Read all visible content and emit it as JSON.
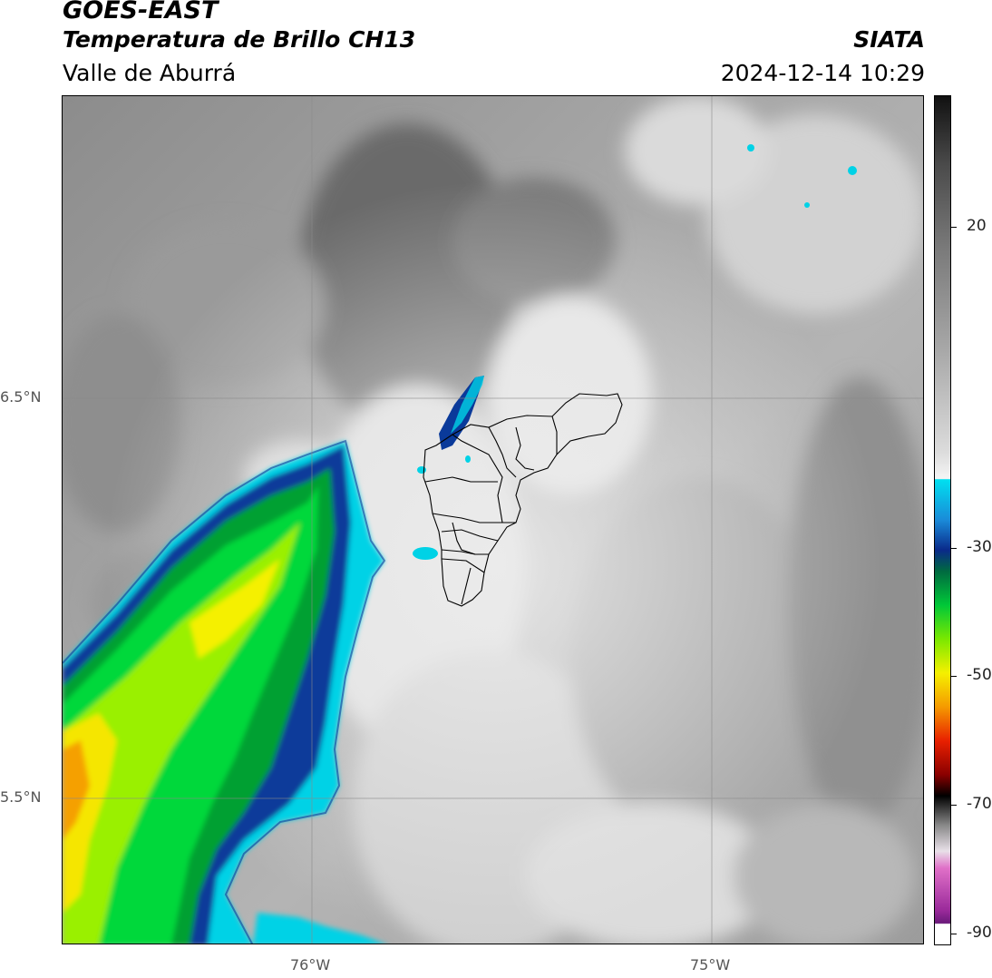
{
  "header": {
    "satellite": "GOES-EAST",
    "product": "Temperatura de Brillo CH13",
    "region": "Valle de Aburrá",
    "organization": "SIATA",
    "datetime": "2024-12-14 10:29"
  },
  "map": {
    "lat_labels": [
      "6.5°N",
      "5.5°N"
    ],
    "lon_labels": [
      "76°W",
      "75°W"
    ],
    "gridlines": true
  },
  "colorbar": {
    "tick_labels": [
      "20",
      "-30",
      "-50",
      "-70",
      "-90"
    ],
    "colors": {
      "warm_gray": "#8a8a8a",
      "light": "#f2f2f2",
      "cyan": "#00d8e8",
      "blue": "#0a3a9a",
      "green": "#00c838",
      "yellow": "#f5f000",
      "orange": "#f59a00",
      "red": "#e00000",
      "black": "#000000",
      "magenta": "#c040b8",
      "purple": "#7a1a8a"
    }
  }
}
